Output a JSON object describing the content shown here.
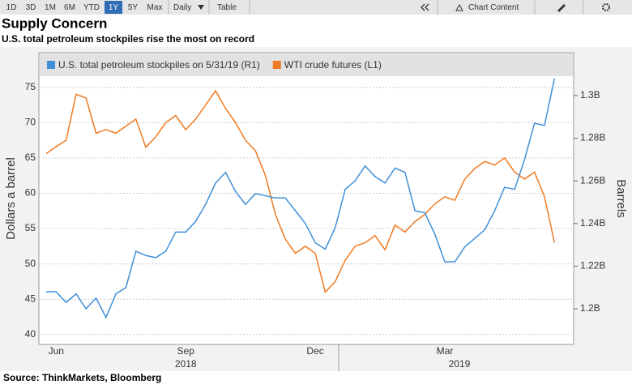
{
  "toolbar": {
    "ranges": [
      "1D",
      "3D",
      "1M",
      "6M",
      "YTD",
      "1Y",
      "5Y",
      "Max"
    ],
    "active": "1Y",
    "frequency": "Daily",
    "table": "Table",
    "content": "Chart Content"
  },
  "chart_data": {
    "type": "line",
    "title": "Supply Concern",
    "subtitle": "U.S. total petroleum stockpiles rise the most on record",
    "source": "Source: ThinkMarkets, Bloomberg",
    "ylabel": "Dollars a barrel",
    "y2label": "Barrels",
    "legend": "top",
    "grid": true,
    "categories": [
      null,
      "Jun",
      null,
      null,
      null,
      null,
      null,
      null,
      null,
      null,
      null,
      null,
      null,
      null,
      "Sep",
      null,
      null,
      null,
      null,
      null,
      null,
      null,
      null,
      null,
      null,
      null,
      null,
      "Dec",
      null,
      null,
      null,
      null,
      null,
      null,
      null,
      null,
      null,
      null,
      null,
      null,
      "Mar",
      null,
      null,
      null,
      null,
      null,
      null,
      null,
      null,
      null,
      null,
      null
    ],
    "years": [
      "2018",
      "2019"
    ],
    "ylim": [
      38.6,
      79.9
    ],
    "yticks": [
      40,
      45,
      50,
      55,
      60,
      65,
      70,
      75
    ],
    "y2lim": [
      1.1833,
      1.3201
    ],
    "y2ticks": [
      {
        "value": 1.2,
        "label": "1.2B"
      },
      {
        "value": 1.22,
        "label": "1.22B"
      },
      {
        "value": 1.24,
        "label": "1.24B"
      },
      {
        "value": 1.26,
        "label": "1.26B"
      },
      {
        "value": 1.28,
        "label": "1.28B"
      },
      {
        "value": 1.3,
        "label": "1.3B"
      }
    ],
    "series": [
      {
        "name": "U.S. total petroleum stockpiles on 5/31/19 (R1)",
        "color": "#3f8fd8",
        "axis": "y2",
        "values": [
          1.208,
          1.208,
          1.203,
          1.207,
          1.2,
          1.205,
          1.196,
          1.207,
          1.21,
          1.227,
          1.225,
          1.224,
          1.227,
          1.236,
          1.236,
          1.241,
          1.249,
          1.259,
          1.264,
          1.255,
          1.249,
          1.254,
          1.253,
          1.252,
          1.252,
          1.246,
          1.24,
          1.231,
          1.228,
          1.238,
          1.256,
          1.26,
          1.267,
          1.262,
          1.259,
          1.266,
          1.264,
          1.246,
          1.245,
          1.235,
          1.222,
          1.222,
          1.229,
          1.233,
          1.237,
          1.246,
          1.257,
          1.256,
          1.27,
          1.287,
          1.286,
          1.308
        ]
      },
      {
        "name": "WTI crude futures  (L1)",
        "color": "#f07a22",
        "axis": "y",
        "values": [
          65.6,
          66.6,
          67.5,
          74.0,
          73.5,
          68.5,
          69.0,
          68.5,
          69.5,
          70.5,
          66.5,
          68.0,
          70.0,
          71.0,
          69.0,
          70.5,
          72.5,
          74.5,
          72.0,
          70.0,
          67.5,
          66.0,
          62.5,
          57.0,
          53.5,
          51.5,
          52.5,
          51.5,
          46.0,
          47.5,
          50.5,
          52.5,
          53.0,
          54.0,
          52.0,
          55.5,
          54.5,
          56.0,
          57.0,
          58.5,
          59.5,
          59.0,
          62.0,
          63.5,
          64.5,
          64.0,
          65.0,
          63.0,
          62.0,
          63.0,
          59.5,
          53.0
        ]
      }
    ]
  }
}
